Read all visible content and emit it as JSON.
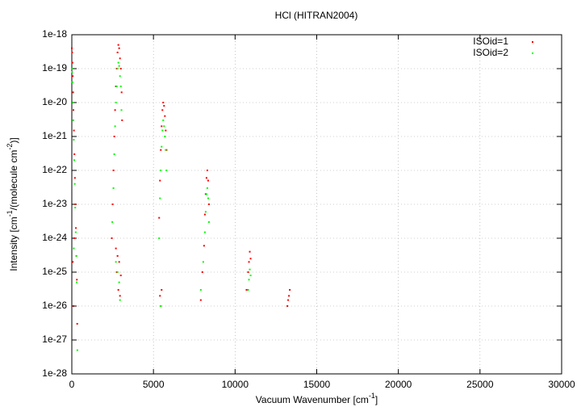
{
  "chart_data": {
    "type": "scatter",
    "title": "HCl (HITRAN2004)",
    "xlabel": [
      "Vacuum Wavenumber [cm",
      "-1",
      "]"
    ],
    "ylabel": [
      "Intensity [cm",
      "-1",
      "/(molecule cm",
      "-2",
      ")]"
    ],
    "xlim": [
      0,
      30000
    ],
    "xticks": [
      0,
      5000,
      10000,
      15000,
      20000,
      25000,
      30000
    ],
    "ylim": [
      1e-28,
      1e-18
    ],
    "log_y": true,
    "grid": true,
    "legend": "top-right",
    "yticks": [
      {
        "value": 1e-28,
        "label": "1e-28"
      },
      {
        "value": 1e-27,
        "label": "1e-27"
      },
      {
        "value": 1e-26,
        "label": "1e-26"
      },
      {
        "value": 1e-25,
        "label": "1e-25"
      },
      {
        "value": 1e-24,
        "label": "1e-24"
      },
      {
        "value": 1e-23,
        "label": "1e-23"
      },
      {
        "value": 1e-22,
        "label": "1e-22"
      },
      {
        "value": 1e-21,
        "label": "1e-21"
      },
      {
        "value": 1e-20,
        "label": "1e-20"
      },
      {
        "value": 1e-19,
        "label": "1e-19"
      },
      {
        "value": 1e-18,
        "label": "1e-18"
      }
    ],
    "series": [
      {
        "name": "ISOid=1",
        "color": "#ff0000",
        "x": [
          0,
          20,
          40,
          60,
          80,
          100,
          130,
          160,
          190,
          220,
          250,
          280,
          310,
          330,
          150,
          60,
          100,
          2850,
          2900,
          2950,
          3000,
          3050,
          3080,
          2800,
          2750,
          2700,
          2650,
          2600,
          2550,
          2500,
          2450,
          2700,
          2800,
          2900,
          3000,
          2750,
          2850,
          2950,
          5600,
          5650,
          5700,
          5750,
          5800,
          5550,
          5500,
          5450,
          5400,
          5350,
          5400,
          5500,
          5450,
          8300,
          8350,
          8400,
          8250,
          8200,
          8150,
          8100,
          8000,
          7900,
          10900,
          10950,
          10850,
          10800,
          10700,
          13350,
          13300,
          13250,
          13200
        ],
        "values": [
          4e-19,
          3e-19,
          1.5e-19,
          6e-20,
          2e-20,
          6e-21,
          1.5e-21,
          3e-22,
          6e-23,
          1e-23,
          2e-24,
          3e-25,
          6e-26,
          3e-27,
          1e-24,
          2e-25,
          1e-26,
          5e-19,
          4e-19,
          2e-19,
          1e-19,
          2e-20,
          3e-21,
          3e-19,
          1e-19,
          3e-20,
          6e-21,
          1e-21,
          1e-22,
          1e-23,
          1e-24,
          5e-25,
          3e-25,
          2e-25,
          8e-26,
          1e-25,
          3e-26,
          2e-26,
          1e-20,
          8e-21,
          4e-21,
          1.5e-21,
          4e-22,
          6e-21,
          2e-21,
          4e-22,
          5e-23,
          4e-24,
          2e-26,
          3e-26,
          1e-26,
          1e-22,
          5e-23,
          1e-23,
          6e-23,
          2e-23,
          5e-24,
          6e-25,
          1e-25,
          1.5e-26,
          4e-25,
          2.5e-25,
          2e-25,
          1e-25,
          3e-26,
          3e-26,
          2e-26,
          1.5e-26,
          1e-26
        ]
      },
      {
        "name": "ISOid=2",
        "color": "#00ff00",
        "x": [
          0,
          20,
          40,
          70,
          90,
          120,
          150,
          180,
          210,
          240,
          270,
          300,
          340,
          120,
          2850,
          2900,
          2950,
          3000,
          3040,
          2800,
          2750,
          2700,
          2650,
          2600,
          2550,
          2480,
          2700,
          2800,
          2900,
          2950,
          5600,
          5650,
          5700,
          5750,
          5800,
          5550,
          5500,
          5450,
          5400,
          5350,
          5450,
          8300,
          8250,
          8350,
          8200,
          8150,
          8400,
          8050,
          7900,
          10900,
          10850,
          10950,
          10800
        ],
        "values": [
          1e-19,
          8e-20,
          4e-20,
          1e-20,
          3e-21,
          8e-22,
          2e-22,
          4e-23,
          8e-24,
          1.5e-24,
          3e-25,
          5e-26,
          5e-28,
          5e-25,
          1.5e-19,
          1.2e-19,
          6e-20,
          3e-20,
          6e-21,
          1e-19,
          3e-20,
          1e-20,
          2e-21,
          3e-22,
          3e-23,
          3e-24,
          2e-25,
          1e-25,
          5e-26,
          1.5e-26,
          3e-21,
          2e-21,
          1e-21,
          4e-22,
          1e-22,
          1.5e-21,
          5e-22,
          1e-22,
          1.5e-23,
          1e-24,
          1e-26,
          3e-23,
          2e-23,
          1.5e-23,
          6e-24,
          1.5e-24,
          3e-24,
          2e-25,
          3e-26,
          1.2e-25,
          6e-26,
          8e-26,
          3e-26
        ]
      }
    ]
  }
}
